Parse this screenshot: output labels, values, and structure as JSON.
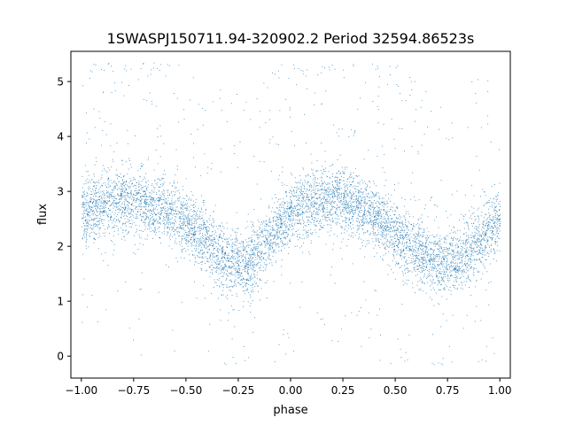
{
  "chart_data": {
    "type": "scatter",
    "title": "1SWASPJ150711.94-320902.2 Period 32594.86523s",
    "xlabel": "phase",
    "ylabel": "flux",
    "xlim": [
      -1.05,
      1.05
    ],
    "ylim": [
      -0.4,
      5.55
    ],
    "xticks": [
      -1.0,
      -0.75,
      -0.5,
      -0.25,
      0.0,
      0.25,
      0.5,
      0.75,
      1.0
    ],
    "xtick_labels": [
      "−1.00",
      "−0.75",
      "−0.50",
      "−0.25",
      "0.00",
      "0.25",
      "0.50",
      "0.75",
      "1.00"
    ],
    "yticks": [
      0,
      1,
      2,
      3,
      4,
      5
    ],
    "ytick_labels": [
      "0",
      "1",
      "2",
      "3",
      "4",
      "5"
    ],
    "grid": false,
    "legend": "none",
    "marker_color": "#1f77b4",
    "series": [
      {
        "x": [
          -1.0,
          -0.9,
          -0.8,
          -0.7,
          -0.6,
          -0.5,
          -0.4,
          -0.3,
          -0.2,
          -0.1,
          0.0,
          0.1,
          0.2,
          0.3,
          0.4,
          0.5,
          0.6,
          0.7,
          0.8,
          0.9,
          1.0
        ],
        "y": [
          2.6,
          2.75,
          2.85,
          2.8,
          2.7,
          2.45,
          2.05,
          1.7,
          1.65,
          2.15,
          2.65,
          2.8,
          2.85,
          2.8,
          2.55,
          2.25,
          1.9,
          1.7,
          1.75,
          2.1,
          2.6
        ]
      }
    ]
  }
}
